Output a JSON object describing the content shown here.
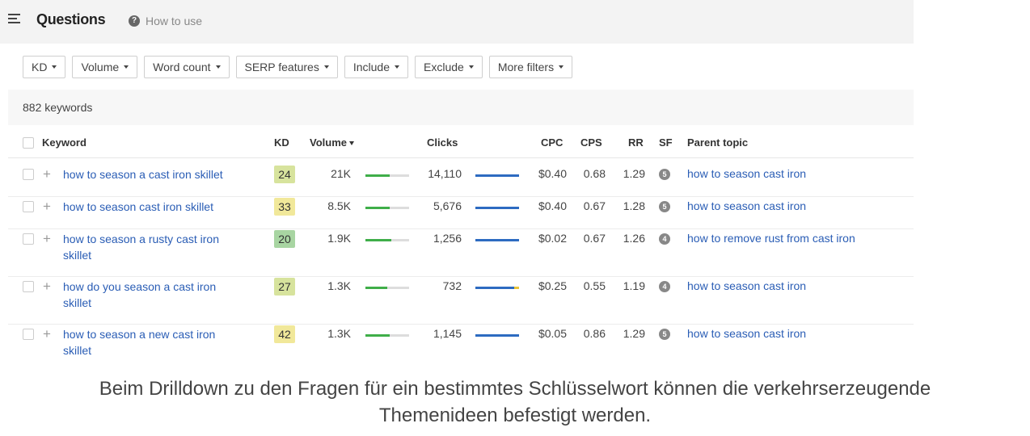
{
  "header": {
    "title": "Questions",
    "help_icon": "?",
    "help_text": "How to use"
  },
  "filters": [
    "KD",
    "Volume",
    "Word count",
    "SERP features",
    "Include",
    "Exclude",
    "More filters"
  ],
  "count": "882 keywords",
  "columns": {
    "keyword": "Keyword",
    "kd": "KD",
    "volume": "Volume",
    "clicks": "Clicks",
    "cpc": "CPC",
    "cps": "CPS",
    "rr": "RR",
    "sf": "SF",
    "parent": "Parent topic"
  },
  "colors": {
    "kd_green": "#a8d5a2",
    "kd_yellow_green": "#d7e39d",
    "kd_yellow": "#f1e89a",
    "link": "#2a5db5",
    "volume_bar": "#3fae49",
    "clicks_bar": "#2d6bc1"
  },
  "rows": [
    {
      "keyword_lines": [
        "how to season a cast iron skillet"
      ],
      "kd": "24",
      "kd_color": "#d7e39d",
      "volume": "21K",
      "volume_fill": 0.55,
      "clicks": "14,110",
      "cpc": "$0.40",
      "cps": "0.68",
      "rr": "1.29",
      "sf": "5",
      "parent": "how to season cast iron"
    },
    {
      "keyword_lines": [
        "how to season cast iron skillet"
      ],
      "kd": "33",
      "kd_color": "#f1e89a",
      "volume": "8.5K",
      "volume_fill": 0.55,
      "clicks": "5,676",
      "cpc": "$0.40",
      "cps": "0.67",
      "rr": "1.28",
      "sf": "5",
      "parent": "how to season cast iron"
    },
    {
      "keyword_lines": [
        "how to season a rusty cast iron",
        "skillet"
      ],
      "kd": "20",
      "kd_color": "#a8d5a2",
      "volume": "1.9K",
      "volume_fill": 0.6,
      "clicks": "1,256",
      "cpc": "$0.02",
      "cps": "0.67",
      "rr": "1.26",
      "sf": "4",
      "parent": "how to remove rust from cast iron"
    },
    {
      "keyword_lines": [
        "how do you season a cast iron",
        "skillet"
      ],
      "kd": "27",
      "kd_color": "#d7e39d",
      "volume": "1.3K",
      "volume_fill": 0.5,
      "clicks": "732",
      "cpc": "$0.25",
      "cps": "0.55",
      "rr": "1.19",
      "sf": "4",
      "parent": "how to season cast iron"
    },
    {
      "keyword_lines": [
        "how to season a new cast iron",
        "skillet"
      ],
      "kd": "42",
      "kd_color": "#f1e89a",
      "volume": "1.3K",
      "volume_fill": 0.55,
      "clicks": "1,145",
      "cpc": "$0.05",
      "cps": "0.86",
      "rr": "1.29",
      "sf": "5",
      "parent": "how to season cast iron"
    }
  ],
  "caption_lines": [
    "Beim Drilldown zu den Fragen für ein bestimmtes Schlüsselwort können die verkehrserzeugende",
    "Themenideen befestigt werden."
  ]
}
